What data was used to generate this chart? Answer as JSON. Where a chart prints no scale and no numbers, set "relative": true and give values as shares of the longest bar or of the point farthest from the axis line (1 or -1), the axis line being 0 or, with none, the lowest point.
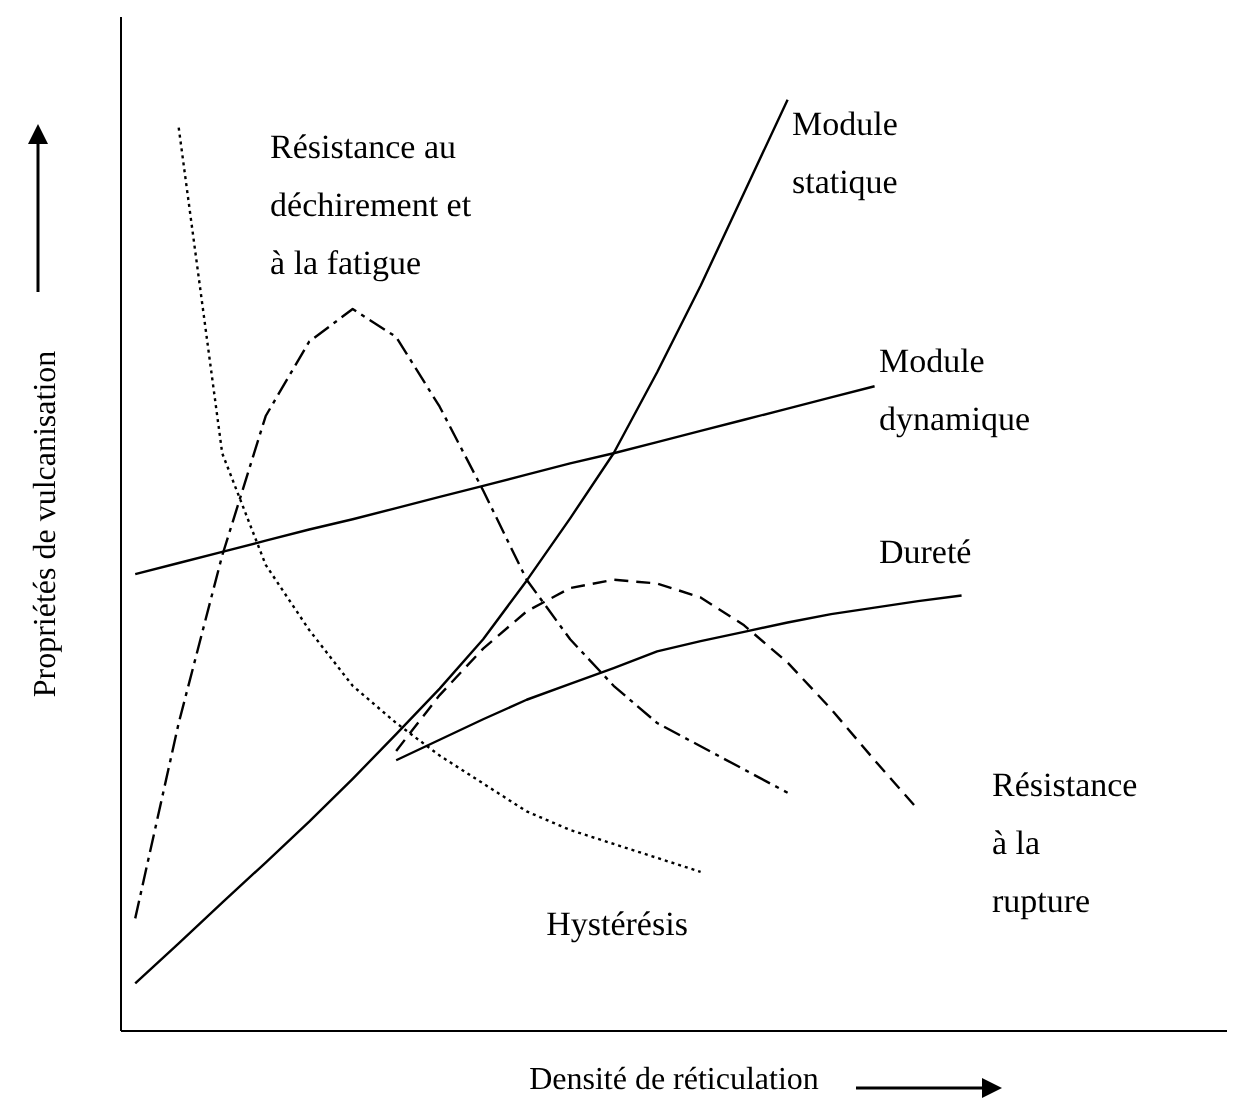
{
  "chart_data": {
    "type": "line",
    "relative": true,
    "xlabel": "Densité de réticulation",
    "ylabel": "Propriétés de vulcanisation",
    "categories": [
      null,
      null,
      null,
      null,
      null,
      null,
      null,
      null,
      null,
      null,
      null,
      null,
      null,
      null,
      null,
      null,
      null,
      null,
      null,
      null
    ],
    "series": [
      {
        "name": "Module statique",
        "color": "#000000",
        "line_style": "solid",
        "values": [
          0.05,
          0.093,
          0.137,
          0.18,
          0.224,
          0.27,
          0.318,
          0.367,
          0.42,
          0.483,
          0.55,
          0.62,
          0.707,
          0.8,
          0.9,
          1.0,
          null,
          null,
          null,
          null
        ]
      },
      {
        "name": "Module dynamique",
        "color": "#000000",
        "line_style": "solid",
        "values": [
          0.49,
          0.502,
          0.514,
          0.526,
          0.538,
          0.549,
          0.561,
          0.573,
          0.585,
          0.597,
          0.609,
          0.62,
          0.632,
          0.644,
          0.656,
          0.668,
          0.68,
          0.692,
          null,
          null
        ]
      },
      {
        "name": "Dureté",
        "color": "#000000",
        "line_style": "solid",
        "values": [
          null,
          null,
          null,
          null,
          null,
          null,
          0.29,
          0.312,
          0.334,
          0.355,
          0.372,
          0.389,
          0.407,
          0.418,
          0.428,
          0.438,
          0.447,
          0.454,
          0.461,
          0.467
        ]
      },
      {
        "name": "Résistance au déchirement et à la fatigue",
        "color": "#000000",
        "line_style": "dashdot",
        "values": [
          0.12,
          0.33,
          0.51,
          0.66,
          0.74,
          0.775,
          0.745,
          0.67,
          0.58,
          0.484,
          0.42,
          0.37,
          0.33,
          0.305,
          0.28,
          0.255,
          null,
          null,
          null,
          null
        ]
      },
      {
        "name": "Résistance à la rupture",
        "color": "#000000",
        "line_style": "dashed",
        "values": [
          null,
          null,
          null,
          null,
          null,
          null,
          0.3,
          0.36,
          0.41,
          0.45,
          0.475,
          0.484,
          0.48,
          0.465,
          0.435,
          0.395,
          0.345,
          0.29,
          0.237,
          null
        ]
      },
      {
        "name": "Hystérésis",
        "color": "#000000",
        "line_style": "dotted",
        "values": [
          null,
          0.97,
          0.62,
          0.5,
          0.43,
          0.37,
          0.33,
          0.295,
          0.265,
          0.235,
          0.215,
          0.2,
          0.185,
          0.17,
          null,
          null,
          null,
          null,
          null,
          null
        ]
      }
    ]
  }
}
